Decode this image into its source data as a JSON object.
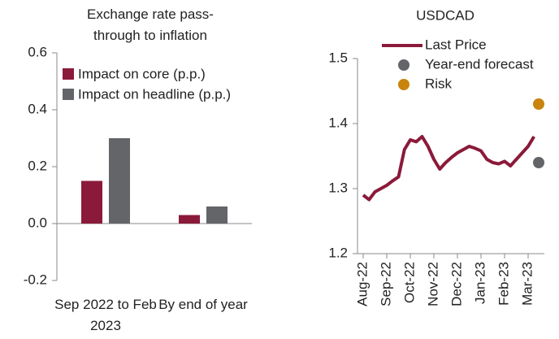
{
  "chart_data": [
    {
      "type": "bar",
      "title": "Exchange rate pass-through to inflation",
      "categories": [
        "Sep 2022 to Feb 2023",
        "By end of year"
      ],
      "series": [
        {
          "name": "Impact on core (p.p.)",
          "color": "#8b1a3a",
          "values": [
            0.15,
            0.03
          ]
        },
        {
          "name": "Impact on headline (p.p.)",
          "color": "#636569",
          "values": [
            0.3,
            0.06
          ]
        }
      ],
      "ylim": [
        -0.2,
        0.6
      ],
      "yticks": [
        -0.2,
        {
          "value": 0,
          "label": "0.0"
        },
        0.2,
        0.4,
        0.6
      ],
      "legend": "top-left"
    },
    {
      "type": "line",
      "title": "USDCAD",
      "categories": [
        "Aug-22",
        null,
        null,
        null,
        "Sep-22",
        null,
        null,
        null,
        "Oct-22",
        null,
        null,
        null,
        "Nov-22",
        null,
        null,
        null,
        "Dec-22",
        null,
        null,
        null,
        "Jan-23",
        null,
        null,
        null,
        "Feb-23",
        null,
        null,
        null,
        "Mar-23",
        null
      ],
      "series": [
        {
          "name": "Last Price",
          "color": "#8b1a3a",
          "values": [
            1.29,
            1.283,
            1.295,
            1.3,
            1.305,
            1.312,
            1.318,
            1.36,
            1.375,
            1.372,
            1.38,
            1.365,
            1.345,
            1.33,
            1.34,
            1.348,
            1.355,
            1.36,
            1.365,
            1.362,
            1.358,
            1.345,
            1.34,
            1.338,
            1.342,
            1.335,
            1.345,
            1.355,
            1.365,
            1.38
          ]
        }
      ],
      "points": [
        {
          "name": "Year-end forecast",
          "color": "#636569",
          "value": 1.34
        },
        {
          "name": "Risk",
          "color": "#c8840c",
          "value": 1.43
        }
      ],
      "ylim": [
        1.2,
        1.5
      ],
      "yticks": [
        1.2,
        1.3,
        1.4,
        1.5
      ],
      "legend": "top-right"
    }
  ]
}
